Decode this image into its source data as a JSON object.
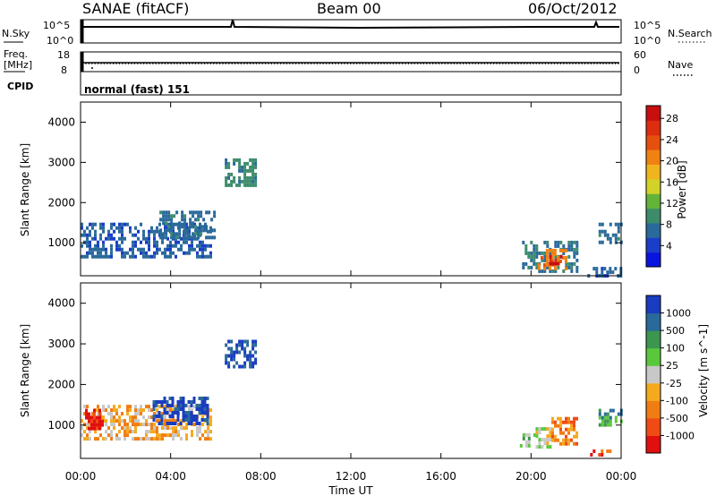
{
  "header": {
    "station": "SANAE (fitACF)",
    "beam": "Beam 00",
    "date": "06/Oct/2012"
  },
  "noise_panel": {
    "left_label": "N.Sky",
    "right_label": "N.Search",
    "left_ticks": [
      "10^5",
      "10^0"
    ],
    "right_ticks": [
      "10^5",
      "10^0"
    ]
  },
  "freq_panel": {
    "left_label_1": "Freq.",
    "left_label_2": "[MHz]",
    "right_label": "Nave",
    "left_ticks": [
      "18",
      "8"
    ],
    "right_ticks": [
      "60",
      "0"
    ]
  },
  "cpid": {
    "label": "CPID",
    "value": "normal (fast) 151"
  },
  "chart_data": [
    {
      "type": "heatmap",
      "title": "",
      "ylabel": "Slant Range [km]",
      "xlabel": "",
      "ylim": [
        180,
        4500
      ],
      "yticks": [
        1000,
        2000,
        3000,
        4000
      ],
      "xlim": [
        0,
        24
      ],
      "colorbar": {
        "label": "Power [dB]",
        "ticks": [
          "4",
          "8",
          "12",
          "16",
          "20",
          "24",
          "28"
        ],
        "range": [
          0,
          30
        ],
        "colors": [
          "#0a14e0",
          "#1a3ec8",
          "#2a6a9a",
          "#3c8c6c",
          "#64b43a",
          "#d2d228",
          "#f0b41e",
          "#f08214",
          "#e6500f",
          "#dc2d0f",
          "#c80f0f"
        ]
      },
      "regions": [
        {
          "t0": 0.0,
          "t1": 5.8,
          "r0": 650,
          "r1": 1500,
          "v": 6
        },
        {
          "t0": 3.5,
          "t1": 5.9,
          "r0": 1100,
          "r1": 1800,
          "v": 7
        },
        {
          "t0": 6.4,
          "t1": 7.8,
          "r0": 2400,
          "r1": 3100,
          "v": 9
        },
        {
          "t0": 19.6,
          "t1": 22.0,
          "r0": 300,
          "r1": 1050,
          "v": 8
        },
        {
          "t0": 20.3,
          "t1": 21.6,
          "r0": 400,
          "r1": 850,
          "v": 21
        },
        {
          "t0": 20.8,
          "t1": 21.3,
          "r0": 450,
          "r1": 700,
          "v": 28
        },
        {
          "t0": 23.0,
          "t1": 24.0,
          "r0": 1000,
          "r1": 1500,
          "v": 7
        },
        {
          "t0": 22.5,
          "t1": 24.0,
          "r0": 200,
          "r1": 400,
          "v": 6
        }
      ]
    },
    {
      "type": "heatmap",
      "title": "",
      "ylabel": "Slant Range [km]",
      "xlabel": "Time UT",
      "ylim": [
        180,
        4500
      ],
      "yticks": [
        1000,
        2000,
        3000,
        4000
      ],
      "xticks": [
        "00:00",
        "04:00",
        "08:00",
        "12:00",
        "16:00",
        "20:00",
        "00:00"
      ],
      "xlim": [
        0,
        24
      ],
      "colorbar": {
        "label": "Velocity [m s^-1]",
        "ticks": [
          "1000",
          "500",
          "100",
          "25",
          "-25",
          "-100",
          "-500",
          "-1000"
        ],
        "colors": [
          "#e10f0f",
          "#f04b14",
          "#f07d14",
          "#f5aa1e",
          "#c8c8c8",
          "#5ac83c",
          "#3c9650",
          "#2a6a9a",
          "#1a3cc0"
        ]
      },
      "regions": [
        {
          "t0": 0.0,
          "t1": 5.8,
          "r0": 650,
          "r1": 1500,
          "v": 3
        },
        {
          "t0": 0.2,
          "t1": 1.0,
          "r0": 900,
          "r1": 1400,
          "v": 0
        },
        {
          "t0": 3.2,
          "t1": 5.6,
          "r0": 1000,
          "r1": 1700,
          "v": 8
        },
        {
          "t0": 6.4,
          "t1": 7.8,
          "r0": 2400,
          "r1": 3100,
          "v": 8
        },
        {
          "t0": 19.5,
          "t1": 20.2,
          "r0": 500,
          "r1": 800,
          "v": 5
        },
        {
          "t0": 20.2,
          "t1": 20.9,
          "r0": 500,
          "r1": 950,
          "v": 4
        },
        {
          "t0": 20.9,
          "t1": 22.0,
          "r0": 550,
          "r1": 1200,
          "v": 2
        },
        {
          "t0": 23.0,
          "t1": 24.0,
          "r0": 1000,
          "r1": 1400,
          "v": 6
        },
        {
          "t0": 22.5,
          "t1": 23.5,
          "r0": 250,
          "r1": 400,
          "v": 1
        }
      ]
    }
  ]
}
